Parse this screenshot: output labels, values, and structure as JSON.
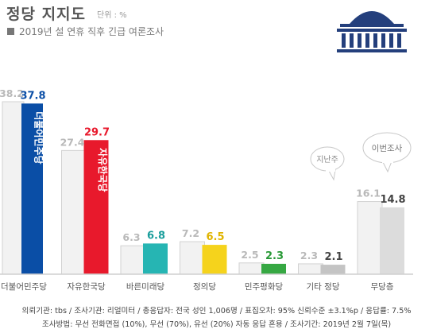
{
  "header": {
    "title": "정당 지지도",
    "unit": "단위 : %",
    "subtitle": "2019년 설 연휴 직후 긴급 여론조사"
  },
  "footer": {
    "line1": "의뢰기관: tbs / 조사기관: 리얼미터 / 총응답자: 전국 성인 1,006명 / 표집오차: 95% 신뢰수준 ±3.1%p / 응답률: 7.5%",
    "line2": "조사방법: 무선 전화면접 (10%), 무선 (70%), 유선 (20%) 자동 응답 혼용 / 조사기간: 2019년 2월 7일(목)"
  },
  "annotations": {
    "previous": "지난주",
    "current": "이번조사"
  },
  "colors": {
    "previous_bar": "#f2f2f2",
    "previous_label": "#b9b9b9",
    "current_label": "#444444",
    "icon": "#243f7c"
  },
  "icon": "national-assembly-icon",
  "chart_data": {
    "type": "bar",
    "categories": [
      "더불어민주당",
      "자유한국당",
      "바른미래당",
      "정의당",
      "민주평화당",
      "기타 정당",
      "무당층"
    ],
    "ylim": [
      0,
      40
    ],
    "series": [
      {
        "name": "지난주",
        "values": [
          38.2,
          27.4,
          6.3,
          7.2,
          2.5,
          2.3,
          16.1
        ]
      },
      {
        "name": "이번조사",
        "values": [
          37.8,
          29.7,
          6.8,
          6.5,
          2.3,
          2.1,
          14.8
        ]
      }
    ],
    "bar_colors": [
      "#0a4ea6",
      "#e8192c",
      "#26b5b3",
      "#f5d31c",
      "#36a843",
      "#c4c4c4",
      "#dcdcdc"
    ],
    "label_colors": [
      "#0a4ea6",
      "#e8192c",
      "#1a9e9c",
      "#e0b400",
      "#2a9a38",
      "#444444",
      "#444444"
    ],
    "bar_texts": [
      "더불어민주당",
      "자유한국당",
      "",
      "",
      "",
      "",
      ""
    ]
  }
}
